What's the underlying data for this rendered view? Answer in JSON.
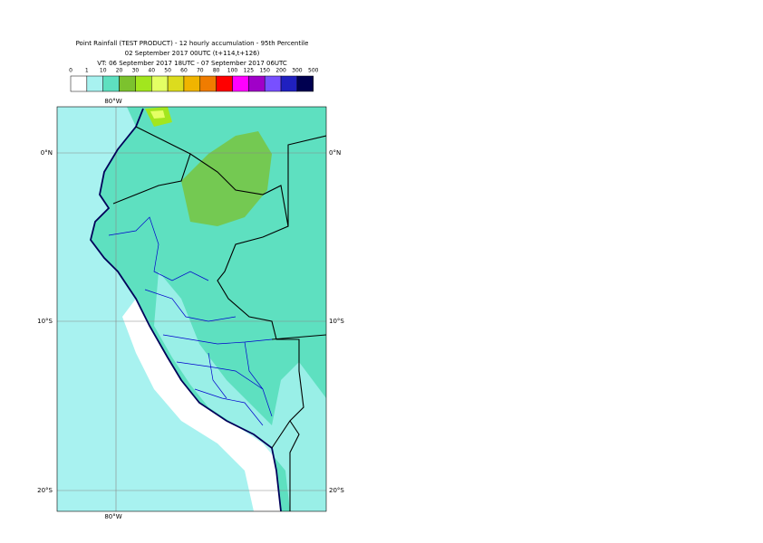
{
  "title": [
    "Point Rainfall (TEST PRODUCT) - 12 hourly accumulation - 95th Percentile",
    "02 September 2017 00UTC (t+114,t+126)",
    "VT: 06 September 2017 18UTC - 07 September 2017 06UTC"
  ],
  "legend": {
    "thresholds": [
      "0",
      "1",
      "10",
      "20",
      "30",
      "40",
      "50",
      "60",
      "70",
      "80",
      "100",
      "125",
      "150",
      "200",
      "300",
      "500"
    ],
    "colors": [
      "#ffffff",
      "#a8f2f0",
      "#5ee0c0",
      "#7cc22e",
      "#a2e61e",
      "#e4ff64",
      "#dcdc1e",
      "#f0b400",
      "#f07c00",
      "#ff0000",
      "#ff00ff",
      "#a000c8",
      "#7850ff",
      "#2020c0",
      "#000050"
    ]
  },
  "axes": {
    "top": "80°W",
    "bottom": "80°W",
    "left": [
      "0°N",
      "10°S",
      "20°S"
    ],
    "right": [
      "0°N",
      "10°S",
      "20°S"
    ]
  }
}
